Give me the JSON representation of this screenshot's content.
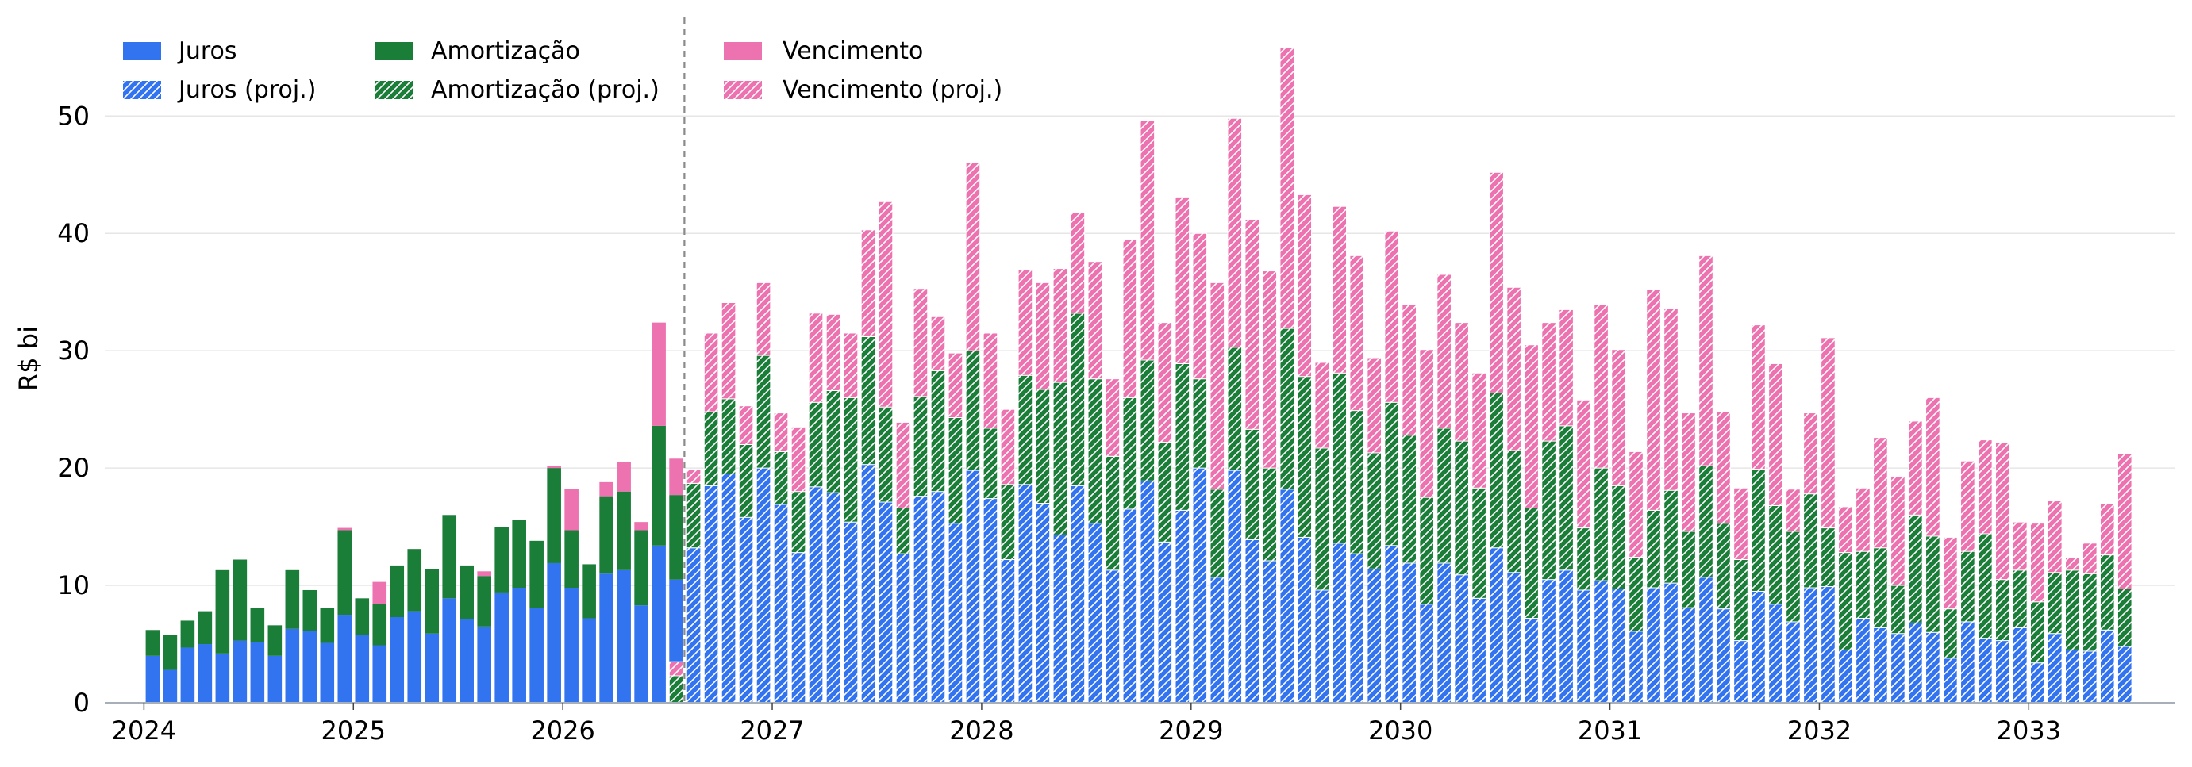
{
  "chart_data": {
    "type": "bar",
    "stacked": true,
    "ylabel": "R$ bi",
    "ylim": [
      0,
      58.4
    ],
    "yticks": [
      0,
      10,
      20,
      30,
      40,
      50
    ],
    "xticks": [
      "2024",
      "2025",
      "2026",
      "2027",
      "2028",
      "2029",
      "2030",
      "2031",
      "2032",
      "2033"
    ],
    "grid": true,
    "legend_position": "top-left",
    "reference_line": {
      "x": "2026-07-31",
      "style": "dashed"
    },
    "groups": [
      {
        "hatch": false,
        "x": [
          "2024-01",
          "2024-02",
          "2024-03",
          "2024-04",
          "2024-05",
          "2024-06",
          "2024-07",
          "2024-08",
          "2024-09",
          "2024-10",
          "2024-11",
          "2024-12",
          "2025-01",
          "2025-02",
          "2025-03",
          "2025-04",
          "2025-05",
          "2025-06",
          "2025-07",
          "2025-08",
          "2025-09",
          "2025-10",
          "2025-11",
          "2025-12",
          "2026-01",
          "2026-02",
          "2026-03",
          "2026-04",
          "2026-05",
          "2026-06",
          "2026-07"
        ],
        "series": [
          {
            "name": "Juros",
            "color": "#3273f0",
            "values": [
              4.0,
              2.8,
              4.7,
              5.0,
              4.2,
              5.3,
              5.2,
              4.0,
              6.3,
              6.1,
              5.1,
              7.5,
              5.8,
              4.9,
              7.3,
              7.8,
              5.9,
              8.9,
              7.1,
              6.5,
              9.4,
              9.8,
              8.1,
              11.9,
              9.8,
              7.2,
              11.0,
              11.3,
              8.3,
              13.4,
              10.5
            ]
          },
          {
            "name": "Amortização",
            "color": "#1a7d38",
            "values": [
              2.2,
              3.0,
              2.3,
              2.8,
              7.1,
              6.9,
              2.9,
              2.6,
              5.0,
              3.5,
              3.0,
              7.2,
              3.1,
              3.5,
              4.4,
              5.3,
              5.5,
              7.1,
              4.6,
              4.3,
              5.6,
              5.8,
              5.7,
              8.1,
              4.9,
              4.6,
              6.6,
              6.7,
              6.4,
              10.2,
              7.2
            ]
          },
          {
            "name": "Vencimento",
            "color": "#ec72b0",
            "values": [
              0,
              0,
              0,
              0,
              0,
              0,
              0,
              0,
              0,
              0,
              0,
              0.2,
              0,
              1.9,
              0,
              0,
              0,
              0,
              0,
              0.4,
              0,
              0,
              0,
              0.2,
              3.5,
              0,
              1.2,
              2.5,
              0.7,
              8.8,
              3.1
            ]
          }
        ]
      },
      {
        "hatch": true,
        "x": [
          "2026-07",
          "2026-08",
          "2026-09",
          "2026-10",
          "2026-11",
          "2026-12",
          "2027-01",
          "2027-02",
          "2027-03",
          "2027-04",
          "2027-05",
          "2027-06",
          "2027-07",
          "2027-08",
          "2027-09",
          "2027-10",
          "2027-11",
          "2027-12",
          "2028-01",
          "2028-02",
          "2028-03",
          "2028-04",
          "2028-05",
          "2028-06",
          "2028-07",
          "2028-08",
          "2028-09",
          "2028-10",
          "2028-11",
          "2028-12",
          "2029-01",
          "2029-02",
          "2029-03",
          "2029-04",
          "2029-05",
          "2029-06",
          "2029-07",
          "2029-08",
          "2029-09",
          "2029-10",
          "2029-11",
          "2029-12",
          "2030-01",
          "2030-02",
          "2030-03",
          "2030-04",
          "2030-05",
          "2030-06",
          "2030-07",
          "2030-08",
          "2030-09",
          "2030-10",
          "2030-11",
          "2030-12",
          "2031-01",
          "2031-02",
          "2031-03",
          "2031-04",
          "2031-05",
          "2031-06",
          "2031-07",
          "2031-08",
          "2031-09",
          "2031-10",
          "2031-11",
          "2031-12",
          "2032-01",
          "2032-02",
          "2032-03",
          "2032-04",
          "2032-05",
          "2032-06",
          "2032-07",
          "2032-08",
          "2032-09",
          "2032-10",
          "2032-11",
          "2032-12",
          "2033-01",
          "2033-02",
          "2033-03",
          "2033-04",
          "2033-05",
          "2033-06"
        ],
        "series": [
          {
            "name": "Juros (proj.)",
            "color": "#3273f0",
            "values": [
              0,
              13.2,
              18.5,
              19.5,
              15.8,
              20.0,
              16.9,
              12.8,
              18.4,
              17.9,
              15.4,
              20.3,
              17.1,
              12.7,
              17.6,
              18.0,
              15.3,
              19.8,
              17.4,
              12.2,
              18.6,
              17.0,
              14.3,
              18.5,
              15.3,
              11.3,
              16.5,
              18.9,
              13.7,
              16.4,
              20.0,
              10.7,
              19.8,
              13.9,
              12.1,
              18.2,
              14.1,
              9.6,
              13.6,
              12.7,
              11.4,
              13.4,
              11.9,
              8.4,
              11.9,
              10.9,
              8.9,
              13.2,
              11.1,
              7.2,
              10.5,
              11.3,
              9.6,
              10.4,
              9.7,
              6.1,
              9.8,
              10.2,
              8.1,
              10.7,
              8.0,
              5.3,
              9.5,
              8.4,
              6.9,
              9.8,
              9.9,
              4.5,
              7.2,
              6.4,
              5.9,
              6.8,
              6.0,
              3.8,
              6.9,
              5.5,
              5.3,
              6.4,
              3.4,
              5.9,
              4.5,
              4.4,
              6.2,
              4.8
            ]
          },
          {
            "name": "Amortização (proj.)",
            "color": "#1a7d38",
            "values": [
              2.3,
              5.5,
              6.3,
              6.4,
              6.2,
              9.6,
              4.5,
              5.2,
              7.2,
              8.7,
              10.6,
              10.9,
              8.1,
              3.9,
              8.5,
              10.3,
              9.0,
              10.2,
              6.0,
              6.4,
              9.3,
              9.7,
              13.0,
              14.7,
              12.3,
              9.7,
              9.5,
              10.3,
              8.5,
              12.5,
              7.6,
              7.5,
              10.5,
              9.4,
              7.9,
              13.7,
              13.7,
              12.1,
              14.5,
              12.2,
              9.9,
              12.2,
              10.9,
              9.1,
              11.5,
              11.4,
              9.4,
              13.2,
              10.4,
              9.4,
              11.8,
              12.3,
              5.3,
              9.6,
              8.8,
              6.3,
              6.6,
              7.9,
              6.5,
              9.5,
              7.3,
              6.9,
              10.4,
              8.4,
              7.7,
              8.0,
              5.0,
              8.3,
              5.7,
              6.8,
              4.1,
              9.2,
              8.2,
              4.2,
              6.0,
              8.9,
              5.2,
              4.9,
              5.2,
              5.2,
              6.8,
              6.6,
              6.4,
              4.9
            ]
          },
          {
            "name": "Vencimento (proj.)",
            "color": "#ec72b0",
            "values": [
              1.2,
              1.2,
              6.7,
              8.2,
              3.3,
              6.2,
              3.3,
              5.5,
              7.6,
              6.5,
              5.5,
              9.1,
              17.5,
              7.3,
              9.2,
              4.6,
              5.5,
              16.0,
              8.1,
              6.4,
              9.0,
              9.1,
              9.7,
              8.6,
              10.0,
              6.6,
              13.5,
              20.4,
              10.2,
              14.2,
              12.4,
              17.6,
              19.5,
              17.9,
              16.8,
              23.9,
              15.5,
              7.3,
              14.2,
              13.2,
              8.1,
              14.6,
              11.1,
              12.6,
              13.1,
              10.1,
              9.8,
              18.8,
              13.9,
              13.9,
              10.1,
              9.9,
              10.9,
              13.9,
              11.6,
              9.0,
              18.8,
              15.5,
              10.1,
              17.9,
              9.5,
              6.1,
              12.3,
              12.1,
              3.6,
              6.9,
              16.2,
              3.9,
              5.4,
              9.4,
              9.3,
              8.0,
              11.8,
              6.1,
              7.7,
              8.0,
              11.7,
              4.1,
              6.7,
              6.1,
              1.1,
              2.6,
              4.4,
              11.5
            ]
          }
        ]
      }
    ]
  }
}
